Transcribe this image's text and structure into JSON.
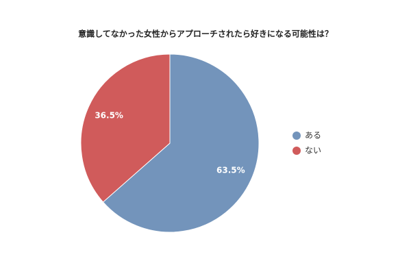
{
  "chart_data": {
    "type": "pie",
    "title": "意識してなかった女性からアプローチされたら好きになる可能性は？",
    "categories": [
      "ある",
      "ない"
    ],
    "values": [
      63.5,
      36.5
    ],
    "value_labels": [
      "63.5%",
      "36.5%"
    ],
    "colors": [
      "#7394bb",
      "#d05b5b"
    ],
    "legend": "right"
  }
}
